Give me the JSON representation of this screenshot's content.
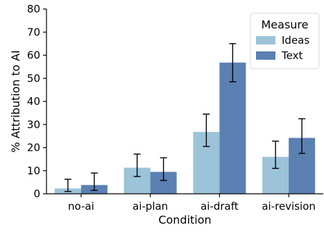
{
  "chart_data": {
    "type": "bar",
    "title": "",
    "xlabel": "Condition",
    "ylabel": "% Attribution to AI",
    "categories": [
      "no-ai",
      "ai-plan",
      "ai-draft",
      "ai-revision"
    ],
    "ylim": [
      0,
      80
    ],
    "yticks": [
      0,
      10,
      20,
      30,
      40,
      50,
      60,
      70,
      80
    ],
    "grid": false,
    "legend": {
      "title": "Measure",
      "placement": "top-right"
    },
    "series": [
      {
        "name": "Ideas",
        "color": "#9cc3d8",
        "values": [
          2.3,
          11.3,
          26.8,
          16.0
        ],
        "error_low": [
          1.0,
          7.5,
          20.5,
          11.0
        ],
        "error_high": [
          6.3,
          17.2,
          34.5,
          22.8
        ]
      },
      {
        "name": "Text",
        "color": "#5b80b2",
        "values": [
          3.8,
          9.5,
          56.8,
          24.2
        ],
        "error_low": [
          1.5,
          5.8,
          48.5,
          17.5
        ],
        "error_high": [
          9.0,
          15.6,
          65.0,
          32.5
        ]
      }
    ]
  }
}
